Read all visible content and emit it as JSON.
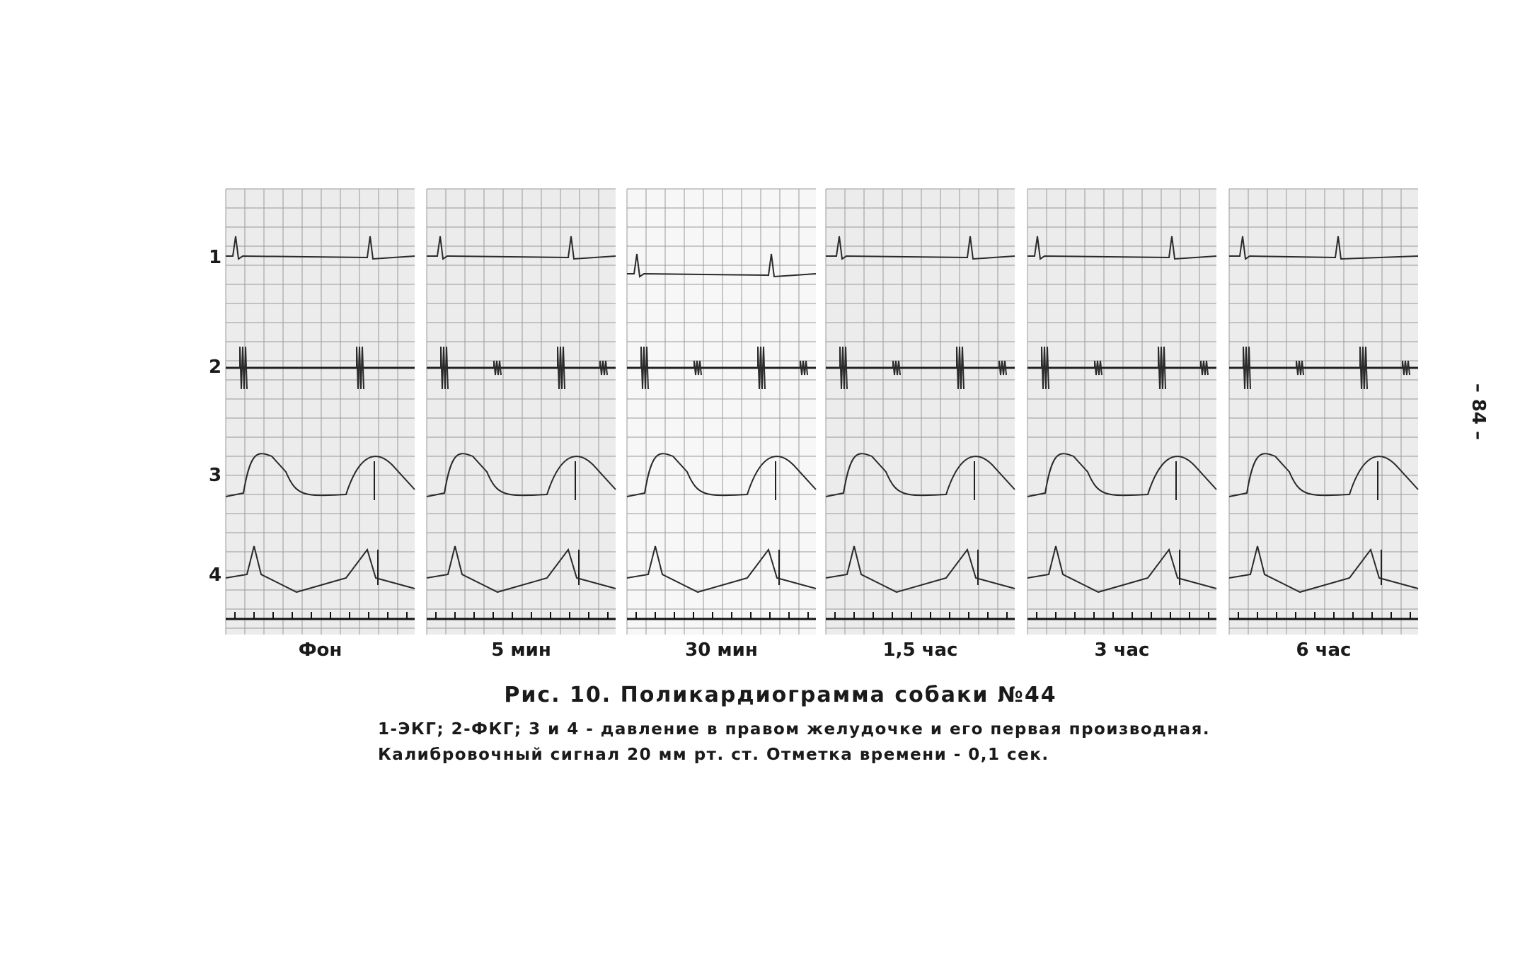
{
  "figure": {
    "row_labels": [
      "1",
      "2",
      "3",
      "4"
    ],
    "panels": [
      {
        "label": "Фон"
      },
      {
        "label": "5 мин"
      },
      {
        "label": "30 мин"
      },
      {
        "label": "1,5 час"
      },
      {
        "label": "3 час"
      },
      {
        "label": "6 час"
      }
    ],
    "caption": {
      "title": "Рис. 10.   Поликардиограмма   собаки   №44",
      "lines": [
        "1-ЭКГ;  2-ФКГ;  3 и 4 - давление  в правом  желудочке  и его  первая  производная.",
        "Калибровочный  сигнал  20 мм  рт. ст.  Отметка  времени - 0,1 сек."
      ]
    }
  },
  "page_number": "– 84 –"
}
